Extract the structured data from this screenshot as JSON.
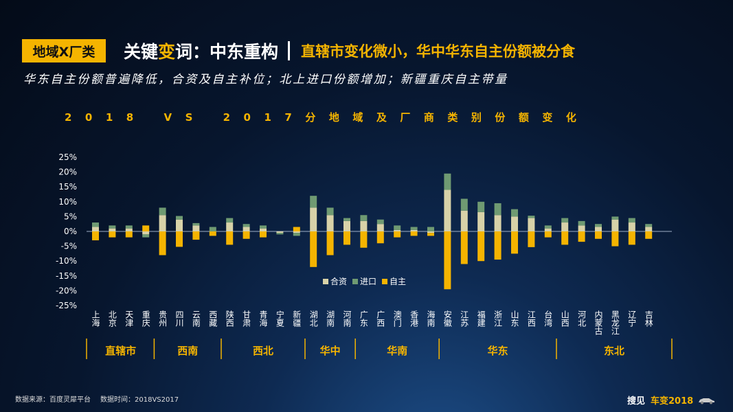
{
  "header": {
    "tag": "地域X厂类",
    "keyword_prefix": "关键",
    "keyword_highlight": "变",
    "keyword_suffix": "词：中东重构",
    "subheadline": "直辖市变化微小，华中华东自主份额被分食"
  },
  "subtitle": "华东自主份额普遍降低，合资及自主补位；北上进口份额增加；新疆重庆自主带量",
  "footer": {
    "source": "数据来源：百度灵犀平台",
    "time": "数据时间：2018VS2017"
  },
  "brand": {
    "text1": "搜见",
    "text2": "车变2018"
  },
  "colors": {
    "joint": "#d8d2a8",
    "import": "#6f9a72",
    "domestic": "#f5b400"
  },
  "chart_data": {
    "type": "bar",
    "title": "2018 VS 2017分地域及厂商类别份额变化",
    "ylim": [
      -25,
      25
    ],
    "yticks": [
      "25%",
      "20%",
      "15%",
      "10%",
      "5%",
      "0%",
      "-5%",
      "-10%",
      "-15%",
      "-20%",
      "-25%"
    ],
    "categories": [
      "上海",
      "北京",
      "天津",
      "重庆",
      "贵州",
      "四川",
      "云南",
      "西藏",
      "陕西",
      "甘肃",
      "青海",
      "宁夏",
      "新疆",
      "湖北",
      "湖南",
      "河南",
      "广东",
      "广西",
      "澳门",
      "香港",
      "海南",
      "安徽",
      "江苏",
      "福建",
      "浙江",
      "山东",
      "江西",
      "台湾",
      "山西",
      "河北",
      "内蒙古",
      "黑龙江",
      "辽宁",
      "吉林"
    ],
    "series": [
      {
        "name": "合资",
        "values": [
          1.5,
          1.0,
          1.0,
          -1.0,
          5.5,
          4.0,
          2.0,
          0.0,
          3.0,
          1.5,
          1.0,
          -0.5,
          -0.5,
          8.0,
          5.5,
          3.5,
          3.5,
          2.5,
          0.5,
          0.5,
          -0.5,
          14.0,
          7.0,
          6.5,
          5.5,
          5.0,
          4.5,
          1.0,
          3.0,
          2.0,
          1.5,
          4.0,
          3.0,
          1.5
        ]
      },
      {
        "name": "进口",
        "values": [
          1.5,
          1.0,
          1.0,
          -1.0,
          2.5,
          1.2,
          0.8,
          1.5,
          1.5,
          1.0,
          1.0,
          -0.5,
          -1.0,
          4.0,
          2.5,
          1.0,
          2.0,
          1.5,
          1.5,
          1.0,
          1.5,
          5.5,
          4.0,
          3.5,
          4.0,
          2.5,
          0.8,
          1.0,
          1.5,
          1.5,
          1.0,
          1.0,
          1.5,
          1.0
        ]
      },
      {
        "name": "自主",
        "values": [
          -3.0,
          -2.0,
          -2.0,
          2.0,
          -8.0,
          -5.2,
          -2.8,
          -1.5,
          -4.5,
          -2.5,
          -2.0,
          0.0,
          1.5,
          -12.0,
          -8.0,
          -4.5,
          -5.5,
          -4.0,
          -2.0,
          -1.5,
          -1.0,
          -19.5,
          -11.0,
          -10.0,
          -9.5,
          -7.5,
          -5.3,
          -2.0,
          -4.5,
          -3.5,
          -2.5,
          -5.0,
          -4.5,
          -2.5
        ]
      }
    ],
    "legend_position": "bottom-center",
    "groups": [
      {
        "label": "直辖市",
        "from": 0,
        "to": 3
      },
      {
        "label": "西南",
        "from": 4,
        "to": 7
      },
      {
        "label": "西北",
        "from": 8,
        "to": 12
      },
      {
        "label": "华中",
        "from": 13,
        "to": 15
      },
      {
        "label": "华南",
        "from": 16,
        "to": 20
      },
      {
        "label": "华东",
        "from": 21,
        "to": 27
      },
      {
        "label": "东北",
        "from": 28,
        "to": 33
      }
    ]
  }
}
